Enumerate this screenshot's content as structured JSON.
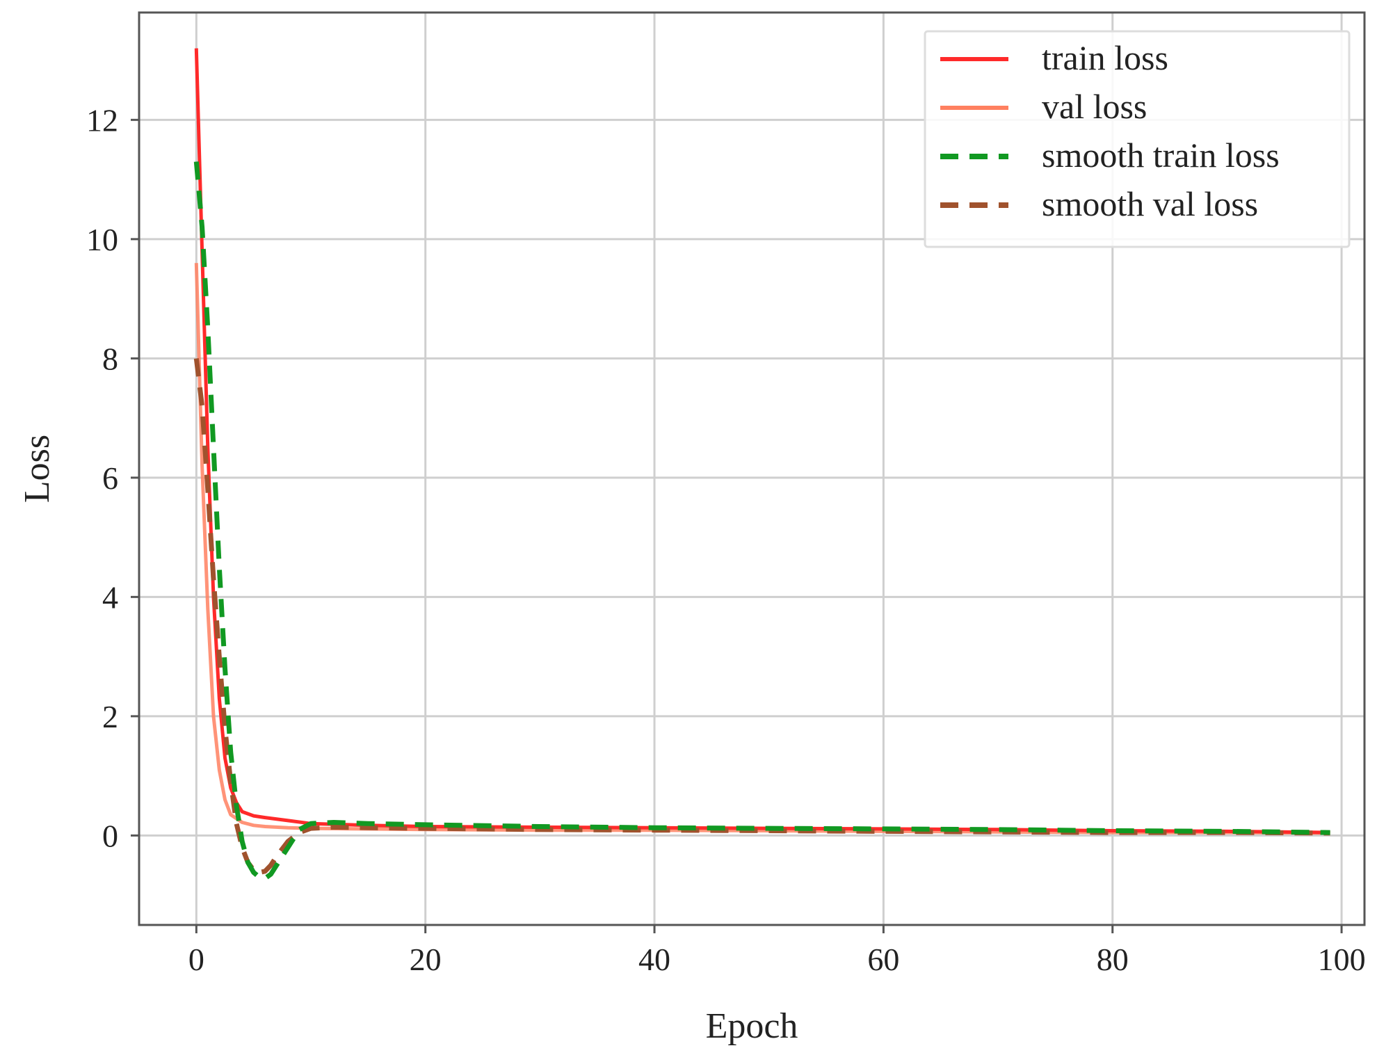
{
  "chart_data": {
    "type": "line",
    "title": "",
    "xlabel": "Epoch",
    "ylabel": "Loss",
    "xlim": [
      -5,
      102
    ],
    "ylim": [
      -1.5,
      13.8
    ],
    "xticks": [
      0,
      20,
      40,
      60,
      80,
      100
    ],
    "yticks": [
      0,
      2,
      4,
      6,
      8,
      10,
      12
    ],
    "grid": true,
    "legend": "top-right",
    "series": [
      {
        "name": "train loss",
        "color": "#ff2a2a",
        "style": "solid",
        "x": [
          0,
          0.5,
          1,
          1.5,
          2,
          2.5,
          3,
          3.5,
          4,
          5,
          6,
          8,
          10,
          15,
          20,
          30,
          40,
          50,
          60,
          70,
          80,
          90,
          99
        ],
        "y": [
          13.2,
          9.8,
          6.5,
          4.0,
          2.3,
          1.3,
          0.8,
          0.55,
          0.4,
          0.33,
          0.3,
          0.25,
          0.2,
          0.17,
          0.15,
          0.14,
          0.13,
          0.12,
          0.11,
          0.1,
          0.08,
          0.07,
          0.05
        ]
      },
      {
        "name": "val loss",
        "color": "#ff8060",
        "style": "solid",
        "x": [
          0,
          0.5,
          1,
          1.5,
          2,
          2.5,
          3,
          4,
          5,
          6,
          8,
          10,
          15,
          20,
          30,
          40,
          50,
          60,
          70,
          80,
          90,
          99
        ],
        "y": [
          9.6,
          6.2,
          3.8,
          2.0,
          1.1,
          0.6,
          0.35,
          0.22,
          0.17,
          0.15,
          0.13,
          0.12,
          0.11,
          0.1,
          0.09,
          0.09,
          0.08,
          0.07,
          0.06,
          0.05,
          0.05,
          0.04
        ]
      },
      {
        "name": "smooth train  loss",
        "color": "#119922",
        "style": "dashed",
        "x": [
          0,
          0.5,
          1,
          1.5,
          2,
          2.5,
          3,
          3.5,
          4,
          4.5,
          5,
          5.5,
          6,
          6.5,
          7,
          8,
          9,
          10,
          12,
          15,
          20,
          30,
          40,
          50,
          60,
          70,
          80,
          90,
          99
        ],
        "y": [
          11.3,
          10.2,
          8.5,
          6.5,
          4.5,
          2.8,
          1.4,
          0.5,
          -0.1,
          -0.45,
          -0.62,
          -0.7,
          -0.72,
          -0.65,
          -0.5,
          -0.2,
          0.1,
          0.2,
          0.22,
          0.2,
          0.18,
          0.15,
          0.13,
          0.12,
          0.11,
          0.1,
          0.08,
          0.07,
          0.05
        ]
      },
      {
        "name": "smooth val  loss",
        "color": "#a0522d",
        "style": "dashed",
        "x": [
          0,
          0.5,
          1,
          1.5,
          2,
          2.5,
          3,
          3.5,
          4,
          4.5,
          5,
          5.5,
          6,
          6.5,
          7,
          8,
          9,
          10,
          12,
          15,
          20,
          30,
          40,
          50,
          60,
          70,
          80,
          90,
          99
        ],
        "y": [
          8.0,
          7.2,
          5.8,
          4.3,
          3.0,
          1.8,
          0.9,
          0.2,
          -0.2,
          -0.45,
          -0.58,
          -0.62,
          -0.6,
          -0.5,
          -0.35,
          -0.1,
          0.05,
          0.12,
          0.14,
          0.13,
          0.12,
          0.1,
          0.09,
          0.08,
          0.07,
          0.06,
          0.05,
          0.05,
          0.04
        ]
      }
    ]
  }
}
